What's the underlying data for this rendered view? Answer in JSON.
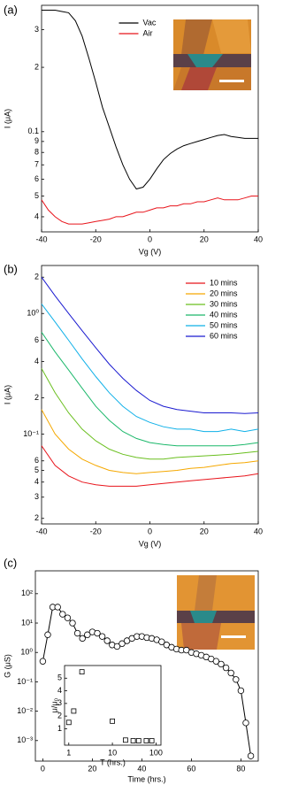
{
  "chart_data": [
    {
      "type": "line",
      "panel_label": "(a)",
      "xlabel": "Vg (V)",
      "ylabel": "I (μA)",
      "yscale": "log",
      "legend": "upper center",
      "xlim": [
        -40,
        40
      ],
      "xticks": [
        -40,
        -20,
        0,
        20,
        40
      ],
      "ylim": [
        0.034,
        0.39
      ],
      "yticks": [
        {
          "value": 0.3,
          "label": "3"
        },
        {
          "value": 0.2,
          "label": "2"
        },
        0.1,
        {
          "value": 0.09,
          "label": "9"
        },
        {
          "value": 0.08,
          "label": "8"
        },
        {
          "value": 0.07,
          "label": "7"
        },
        {
          "value": 0.06,
          "label": "6"
        },
        {
          "value": 0.05,
          "label": "5"
        },
        {
          "value": 0.04,
          "label": "4"
        }
      ],
      "x": [
        -40,
        -37.5,
        -35,
        -32.5,
        -30,
        -27.5,
        -25,
        -22.5,
        -20,
        -17.5,
        -15,
        -12.5,
        -10,
        -7.5,
        -5,
        -2.5,
        0,
        2.5,
        5,
        7.5,
        10,
        12.5,
        15,
        17.5,
        20,
        22.5,
        25,
        27.5,
        30,
        32.5,
        35,
        37.5,
        40
      ],
      "series": [
        {
          "name": "Vac",
          "color": "#000000",
          "values": [
            0.37,
            0.37,
            0.37,
            0.365,
            0.36,
            0.33,
            0.28,
            0.22,
            0.17,
            0.13,
            0.105,
            0.085,
            0.07,
            0.06,
            0.054,
            0.055,
            0.06,
            0.067,
            0.074,
            0.079,
            0.083,
            0.086,
            0.088,
            0.09,
            0.092,
            0.094,
            0.096,
            0.097,
            0.095,
            0.094,
            0.093,
            0.093,
            0.093
          ]
        },
        {
          "name": "Air",
          "color": "#e8141b",
          "values": [
            0.048,
            0.043,
            0.04,
            0.038,
            0.037,
            0.037,
            0.037,
            0.0375,
            0.038,
            0.0385,
            0.039,
            0.04,
            0.04,
            0.041,
            0.042,
            0.042,
            0.043,
            0.044,
            0.044,
            0.045,
            0.045,
            0.046,
            0.046,
            0.047,
            0.047,
            0.048,
            0.049,
            0.048,
            0.048,
            0.048,
            0.049,
            0.05,
            0.05
          ]
        }
      ]
    },
    {
      "type": "line",
      "panel_label": "(b)",
      "xlabel": "Vg (V)",
      "ylabel": "I (μA)",
      "yscale": "log",
      "legend": "upper right",
      "xlim": [
        -40,
        40
      ],
      "xticks": [
        -40,
        -20,
        0,
        20,
        40
      ],
      "ylim": [
        0.018,
        2.5
      ],
      "yticks": [
        2,
        {
          "value": 1,
          "label": "10⁰"
        },
        {
          "value": 0.6,
          "label": "6"
        },
        {
          "value": 0.4,
          "label": "4"
        },
        {
          "value": 0.2,
          "label": "2"
        },
        {
          "value": 0.1,
          "label": "10⁻¹"
        },
        {
          "value": 0.06,
          "label": "6"
        },
        {
          "value": 0.05,
          "label": "5"
        },
        {
          "value": 0.04,
          "label": "4"
        },
        {
          "value": 0.03,
          "label": "3"
        },
        {
          "value": 0.02,
          "label": "2"
        }
      ],
      "x": [
        -40,
        -35,
        -30,
        -25,
        -20,
        -15,
        -10,
        -5,
        0,
        5,
        10,
        15,
        20,
        25,
        30,
        35,
        40
      ],
      "series": [
        {
          "name": "10 mins",
          "color": "#e8141b",
          "values": [
            0.08,
            0.055,
            0.045,
            0.04,
            0.038,
            0.037,
            0.037,
            0.037,
            0.038,
            0.039,
            0.04,
            0.041,
            0.042,
            0.043,
            0.044,
            0.045,
            0.047
          ]
        },
        {
          "name": "20 mins",
          "color": "#f5a800",
          "values": [
            0.16,
            0.1,
            0.075,
            0.062,
            0.055,
            0.05,
            0.048,
            0.047,
            0.048,
            0.049,
            0.05,
            0.052,
            0.053,
            0.055,
            0.057,
            0.058,
            0.06
          ]
        },
        {
          "name": "30 mins",
          "color": "#6abf1f",
          "values": [
            0.35,
            0.22,
            0.15,
            0.11,
            0.088,
            0.075,
            0.068,
            0.064,
            0.062,
            0.062,
            0.064,
            0.065,
            0.066,
            0.067,
            0.068,
            0.07,
            0.072
          ]
        },
        {
          "name": "40 mins",
          "color": "#1cb86b",
          "values": [
            0.7,
            0.48,
            0.34,
            0.24,
            0.17,
            0.13,
            0.105,
            0.092,
            0.085,
            0.082,
            0.08,
            0.08,
            0.08,
            0.08,
            0.08,
            0.082,
            0.085
          ]
        },
        {
          "name": "50 mins",
          "color": "#0fb0e8",
          "values": [
            1.2,
            0.85,
            0.6,
            0.42,
            0.3,
            0.22,
            0.17,
            0.14,
            0.125,
            0.115,
            0.11,
            0.11,
            0.105,
            0.105,
            0.11,
            0.105,
            0.11
          ]
        },
        {
          "name": "60 mins",
          "color": "#1a1ad0",
          "values": [
            2.0,
            1.4,
            1.0,
            0.72,
            0.52,
            0.38,
            0.29,
            0.23,
            0.19,
            0.17,
            0.16,
            0.155,
            0.15,
            0.15,
            0.15,
            0.148,
            0.15
          ]
        }
      ]
    },
    {
      "type": "line",
      "panel_label": "(c)",
      "xlabel": "Time (hrs.)",
      "ylabel": "G (μS)",
      "yscale": "log",
      "marker": "circle",
      "color": "#000000",
      "xlim": [
        -3,
        87
      ],
      "xticks": [
        0,
        20,
        40,
        60,
        80
      ],
      "ylim": [
        0.0002,
        600
      ],
      "yticks": [
        {
          "value": 100,
          "label": "10²"
        },
        {
          "value": 10,
          "label": "10¹"
        },
        {
          "value": 1,
          "label": "10⁰"
        },
        {
          "value": 0.1,
          "label": "10⁻¹"
        },
        {
          "value": 0.01,
          "label": "10⁻²"
        },
        {
          "value": 0.001,
          "label": "10⁻³"
        }
      ],
      "x": [
        0,
        2,
        4,
        6,
        8,
        10,
        12,
        14,
        16,
        18,
        20,
        22,
        24,
        26,
        28,
        30,
        32,
        34,
        36,
        38,
        40,
        42,
        44,
        46,
        48,
        50,
        52,
        54,
        56,
        58,
        60,
        62,
        64,
        66,
        68,
        70,
        72,
        74,
        76,
        78,
        80,
        82,
        84
      ],
      "values": [
        0.5,
        4,
        35,
        35,
        20,
        15,
        10,
        4.5,
        3,
        4,
        5,
        4.5,
        3.5,
        2.5,
        1.8,
        1.6,
        2,
        2.5,
        3,
        3.5,
        3.5,
        3.2,
        3,
        2.7,
        2.3,
        1.8,
        1.5,
        1.3,
        1.2,
        1.2,
        1,
        0.9,
        0.8,
        0.7,
        0.6,
        0.5,
        0.4,
        0.3,
        0.2,
        0.12,
        0.05,
        0.004,
        0.0003
      ]
    },
    {
      "type": "scatter",
      "xlabel": "T (hrs.)",
      "ylabel": "μ/μ₀",
      "xscale": "log",
      "marker": "square",
      "color": "#000000",
      "xlim": [
        0.8,
        130
      ],
      "xticks": [
        1,
        10,
        100
      ],
      "ylim": [
        -0.3,
        6
      ],
      "yticks": [
        1,
        2,
        3,
        4,
        5
      ],
      "x": [
        1,
        1.3,
        2,
        10,
        20,
        30,
        40,
        60,
        80
      ],
      "values": [
        1.5,
        2.4,
        5.5,
        1.6,
        0.1,
        0.05,
        0.05,
        0.05,
        0.05
      ]
    }
  ]
}
